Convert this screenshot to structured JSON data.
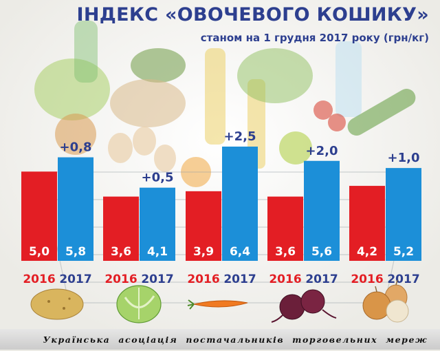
{
  "header": {
    "title": "ІНДЕКС «ОВОЧЕВОГО КОШИКУ»",
    "subtitle": "станом на 1 грудня 2017 року (грн/кг)"
  },
  "footer": {
    "text": "Українська асоціація постачальників торговельних мереж"
  },
  "colors": {
    "red": "#e31e24",
    "blue": "#1c8fd8",
    "delta_text": "#2d3f8f",
    "red_label": "#e31e24",
    "blue_label": "#2d3f8f"
  },
  "groups": [
    {
      "icon": "potato-icon",
      "delta": "+0,8",
      "v2016": "5,0",
      "v2017": "5,8"
    },
    {
      "icon": "cabbage-icon",
      "delta": "+0,5",
      "v2016": "3,6",
      "v2017": "4,1"
    },
    {
      "icon": "carrot-icon",
      "delta": "+2,5",
      "v2016": "3,9",
      "v2017": "6,4"
    },
    {
      "icon": "beet-icon",
      "delta": "+2,0",
      "v2016": "3,6",
      "v2017": "5,6"
    },
    {
      "icon": "onion-icon",
      "delta": "+1,0",
      "v2016": "4,2",
      "v2017": "5,2"
    }
  ],
  "chart_data": {
    "type": "bar",
    "title": "ІНДЕКС «ОВОЧЕВОГО КОШИКУ»",
    "subtitle": "станом на 1 грудня 2017 року (грн/кг)",
    "categories": [
      "",
      "",
      "",
      "",
      ""
    ],
    "series": [
      {
        "name": "2016",
        "values": [
          5.0,
          3.6,
          3.9,
          3.6,
          4.2
        ]
      },
      {
        "name": "2017",
        "values": [
          5.8,
          4.1,
          6.4,
          5.6,
          5.2
        ]
      }
    ],
    "annotations": [
      "+0,8",
      "+0,5",
      "+2,5",
      "+2,0",
      "+1,0"
    ],
    "ylim": [
      0,
      6.4
    ],
    "grid": false
  }
}
